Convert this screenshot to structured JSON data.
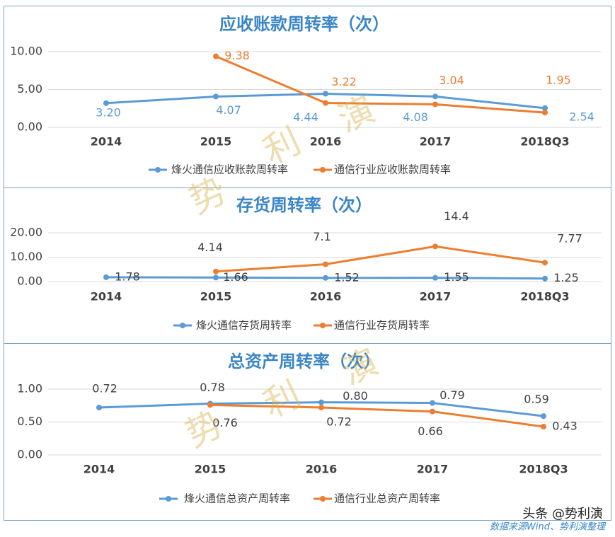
{
  "chart_data": [
    {
      "type": "line",
      "title": "应收账款周转率（次）",
      "categories": [
        "2014",
        "2015",
        "2016",
        "2017",
        "2018Q3"
      ],
      "series": [
        {
          "name": "烽火通信应收账款周转率",
          "color": "#5b9bd5",
          "values": [
            3.2,
            4.07,
            4.44,
            4.08,
            2.54
          ],
          "value_labels": [
            "3.20",
            "4.07",
            "4.44",
            "4.08",
            "2.54"
          ]
        },
        {
          "name": "通信行业应收账款周转率",
          "color": "#ed7d31",
          "values": [
            null,
            9.38,
            3.22,
            3.04,
            1.95
          ]
        }
      ],
      "ylim": [
        0,
        10
      ],
      "yticks": [
        {
          "value": 0,
          "label": "0.00"
        },
        {
          "value": 5,
          "label": "5.00"
        },
        {
          "value": 10,
          "label": "10.00"
        }
      ],
      "grid": true,
      "legend": "bottom"
    },
    {
      "type": "line",
      "title": "存货周转率（次）",
      "categories": [
        "2014",
        "2015",
        "2016",
        "2017",
        "2018Q3"
      ],
      "series": [
        {
          "name": "烽火通信存货周转率",
          "color": "#5b9bd5",
          "values": [
            1.78,
            1.66,
            1.52,
            1.55,
            1.25
          ]
        },
        {
          "name": "通信行业存货周转率",
          "color": "#ed7d31",
          "values": [
            null,
            4.14,
            7.1,
            14.4,
            7.77
          ]
        }
      ],
      "ylim": [
        0,
        20
      ],
      "yticks": [
        {
          "value": 0,
          "label": "0.00"
        },
        {
          "value": 10,
          "label": "10.00"
        },
        {
          "value": 20,
          "label": "20.00"
        }
      ],
      "grid": true,
      "legend": "bottom"
    },
    {
      "type": "line",
      "title": "总资产周转率（次）",
      "categories": [
        "2014",
        "2015",
        "2016",
        "2017",
        "2018Q3"
      ],
      "series": [
        {
          "name": "烽火通信总资产周转率",
          "color": "#5b9bd5",
          "values": [
            0.72,
            0.78,
            0.8,
            0.79,
            0.59
          ],
          "value_labels": [
            "0.72",
            "0.78",
            "0.80",
            "0.79",
            "0.59"
          ]
        },
        {
          "name": "通信行业总资产周转率",
          "color": "#ed7d31",
          "values": [
            null,
            0.76,
            0.72,
            0.66,
            0.43
          ]
        }
      ],
      "ylim": [
        0,
        1
      ],
      "yticks": [
        {
          "value": 0,
          "label": "0.00"
        },
        {
          "value": 0.5,
          "label": "0.50"
        },
        {
          "value": 1,
          "label": "1.00"
        }
      ],
      "grid": true,
      "legend": "bottom"
    }
  ],
  "watermark": [
    "势",
    "利",
    "演"
  ],
  "footer": {
    "account": "头条 @势利演",
    "source": "数据来源Wind、势利演整理"
  }
}
